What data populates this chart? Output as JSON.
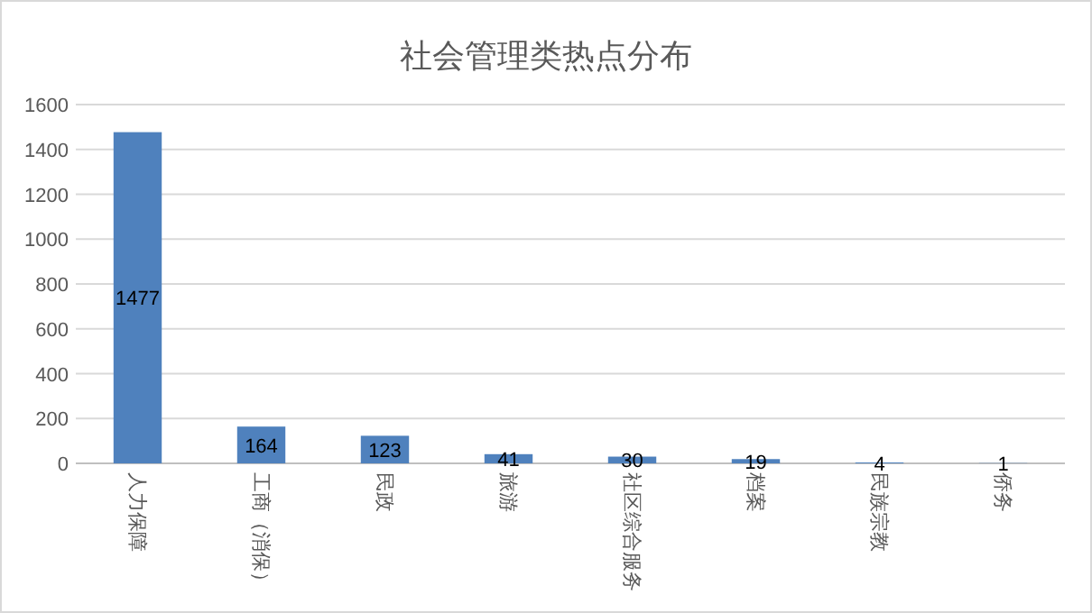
{
  "chart_data": {
    "type": "bar",
    "title": "社会管理类热点分布",
    "categories": [
      "人力保障",
      "工商（消保）",
      "民政",
      "旅游",
      "社区综合服务",
      "档案",
      "民族宗教",
      "侨务"
    ],
    "values": [
      1477,
      164,
      123,
      41,
      30,
      19,
      4,
      1
    ],
    "color": "#4f81bd",
    "ylim": [
      0,
      1600
    ],
    "yticks": [
      0,
      200,
      400,
      600,
      800,
      1000,
      1200,
      1400,
      1600
    ],
    "grid": "y",
    "data_labels": true
  }
}
